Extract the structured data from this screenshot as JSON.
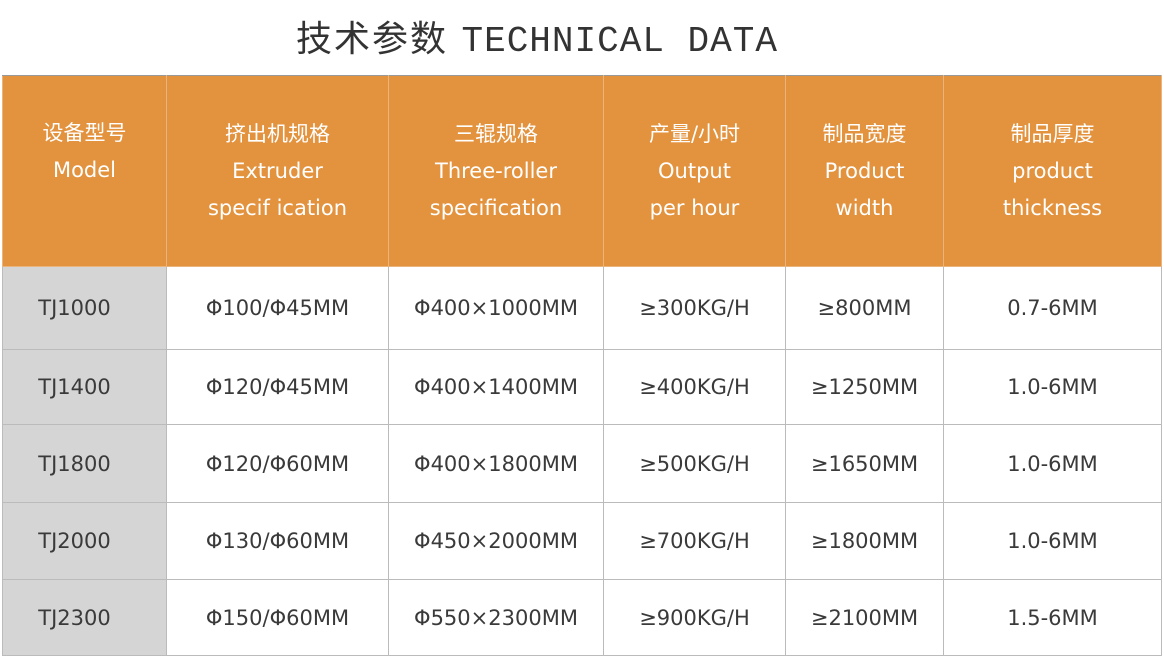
{
  "title": {
    "cn": "技术参数",
    "en": "TECHNICAL DATA"
  },
  "colors": {
    "header_bg": "#e3923d",
    "model_bg": "#d5d5d5"
  },
  "headers": [
    {
      "cn": "设备型号",
      "en1": "Model",
      "en2": ""
    },
    {
      "cn": "挤出机规格",
      "en1": "Extruder",
      "en2": "specif ication"
    },
    {
      "cn": "三辊规格",
      "en1": "Three-roller",
      "en2": "specification"
    },
    {
      "cn": "产量/小时",
      "en1": "Output",
      "en2": "per hour"
    },
    {
      "cn": "制品宽度",
      "en1": "Product",
      "en2": "width"
    },
    {
      "cn": "制品厚度",
      "en1": "product",
      "en2": "thickness"
    }
  ],
  "rows": [
    [
      "TJ1000",
      "Φ100/Φ45MM",
      "Φ400×1000MM",
      "≥300KG/H",
      "≥800MM",
      "0.7-6MM"
    ],
    [
      "TJ1400",
      "Φ120/Φ45MM",
      "Φ400×1400MM",
      "≥400KG/H",
      "≥1250MM",
      "1.0-6MM"
    ],
    [
      "TJ1800",
      "Φ120/Φ60MM",
      "Φ400×1800MM",
      "≥500KG/H",
      "≥1650MM",
      "1.0-6MM"
    ],
    [
      "TJ2000",
      "Φ130/Φ60MM",
      "Φ450×2000MM",
      "≥700KG/H",
      "≥1800MM",
      "1.0-6MM"
    ],
    [
      "TJ2300",
      "Φ150/Φ60MM",
      "Φ550×2300MM",
      "≥900KG/H",
      "≥2100MM",
      "1.5-6MM"
    ]
  ]
}
